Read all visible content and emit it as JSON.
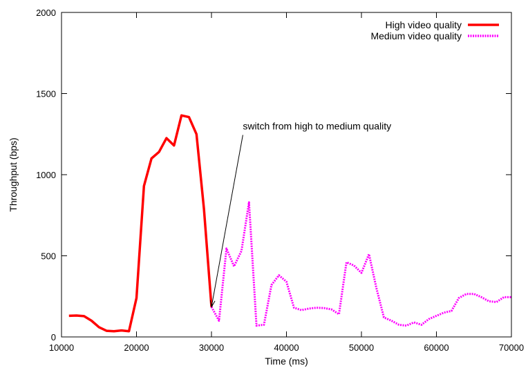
{
  "chart_data": {
    "type": "line",
    "title": "",
    "xlabel": "Time (ms)",
    "ylabel": "Throughput (bps)",
    "xlim": [
      10000,
      70000
    ],
    "ylim": [
      0,
      2000
    ],
    "x_ticks": [
      10000,
      20000,
      30000,
      40000,
      50000,
      60000,
      70000
    ],
    "y_ticks": [
      0,
      500,
      1000,
      1500,
      2000
    ],
    "grid": false,
    "legend_position": "top-right",
    "series": [
      {
        "name": "High video quality",
        "color": "#ff0000",
        "style": "solid",
        "points": [
          [
            11000,
            130
          ],
          [
            12000,
            132
          ],
          [
            13000,
            128
          ],
          [
            14000,
            100
          ],
          [
            15000,
            60
          ],
          [
            16000,
            38
          ],
          [
            17000,
            35
          ],
          [
            18000,
            40
          ],
          [
            19000,
            35
          ],
          [
            20000,
            240
          ],
          [
            21000,
            930
          ],
          [
            22000,
            1100
          ],
          [
            23000,
            1140
          ],
          [
            24000,
            1225
          ],
          [
            25000,
            1180
          ],
          [
            26000,
            1365
          ],
          [
            27000,
            1355
          ],
          [
            28000,
            1250
          ],
          [
            29000,
            790
          ],
          [
            30000,
            185
          ]
        ]
      },
      {
        "name": "Medium video quality",
        "color": "#ff00ff",
        "style": "dotted",
        "points": [
          [
            30000,
            185
          ],
          [
            31000,
            100
          ],
          [
            32000,
            545
          ],
          [
            33000,
            435
          ],
          [
            34000,
            530
          ],
          [
            35000,
            830
          ],
          [
            36000,
            70
          ],
          [
            37000,
            75
          ],
          [
            38000,
            320
          ],
          [
            39000,
            380
          ],
          [
            40000,
            340
          ],
          [
            41000,
            180
          ],
          [
            42000,
            165
          ],
          [
            43000,
            175
          ],
          [
            44000,
            180
          ],
          [
            45000,
            178
          ],
          [
            46000,
            170
          ],
          [
            47000,
            140
          ],
          [
            48000,
            460
          ],
          [
            49000,
            440
          ],
          [
            50000,
            395
          ],
          [
            51000,
            510
          ],
          [
            52000,
            300
          ],
          [
            53000,
            120
          ],
          [
            54000,
            100
          ],
          [
            55000,
            75
          ],
          [
            56000,
            70
          ],
          [
            57000,
            90
          ],
          [
            58000,
            75
          ],
          [
            59000,
            110
          ],
          [
            60000,
            130
          ],
          [
            61000,
            150
          ],
          [
            62000,
            160
          ],
          [
            63000,
            240
          ],
          [
            64000,
            265
          ],
          [
            65000,
            265
          ],
          [
            66000,
            245
          ],
          [
            67000,
            220
          ],
          [
            68000,
            215
          ],
          [
            69000,
            245
          ],
          [
            70000,
            245
          ]
        ]
      }
    ],
    "annotations": [
      {
        "text": "switch from high to medium quality",
        "text_at": [
          34000,
          1300
        ],
        "arrow_to": [
          30000,
          185
        ]
      }
    ]
  }
}
